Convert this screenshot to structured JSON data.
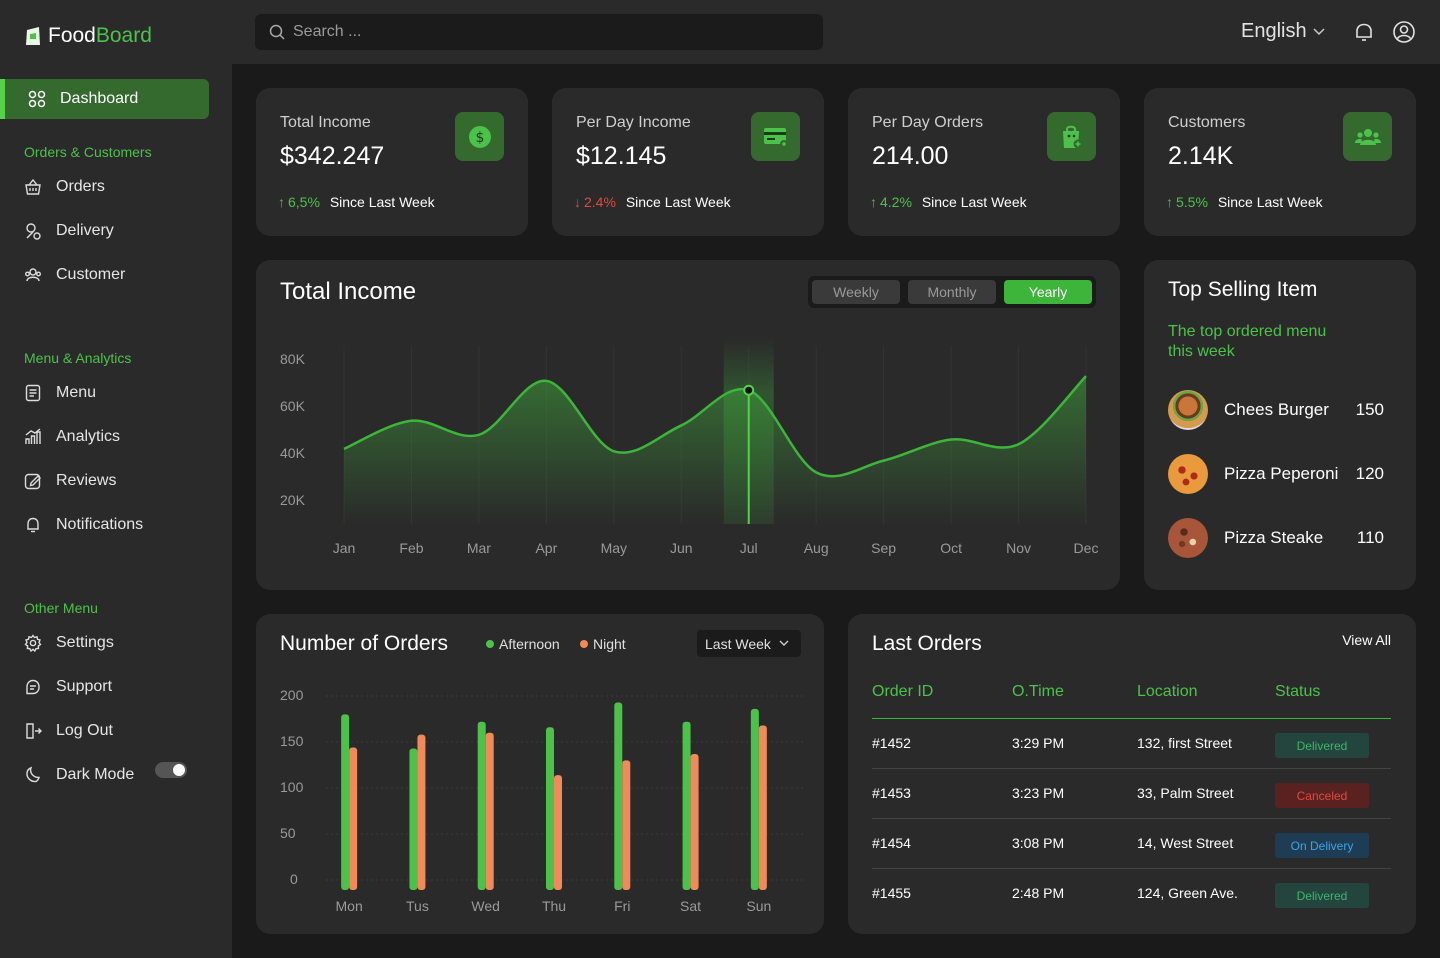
{
  "app": {
    "name_part1": "Food",
    "name_part2": "Board"
  },
  "search": {
    "placeholder": "Search ..."
  },
  "header": {
    "language": "English"
  },
  "sidebar": {
    "dashboard": "Dashboard",
    "section1": "Orders & Customers",
    "orders": "Orders",
    "delivery": "Delivery",
    "customer": "Customer",
    "section2": "Menu & Analytics",
    "menu": "Menu",
    "analytics": "Analytics",
    "reviews": "Reviews",
    "notifications": "Notifications",
    "section3": "Other Menu",
    "settings": "Settings",
    "support": "Support",
    "logout": "Log Out",
    "darkmode": "Dark Mode"
  },
  "stats": [
    {
      "label": "Total Income",
      "value": "$342.247",
      "change": "6,5%",
      "direction": "up",
      "suffix": "Since Last Week"
    },
    {
      "label": "Per Day Income",
      "value": "$12.145",
      "change": "2.4%",
      "direction": "down",
      "suffix": "Since Last Week"
    },
    {
      "label": "Per Day Orders",
      "value": "214.00",
      "change": "4.2%",
      "direction": "up",
      "suffix": "Since Last Week"
    },
    {
      "label": "Customers",
      "value": "2.14K",
      "change": "5.5%",
      "direction": "up",
      "suffix": "Since Last Week"
    }
  ],
  "income_chart": {
    "title": "Total Income",
    "tabs": [
      "Weekly",
      "Monthly",
      "Yearly"
    ],
    "active_tab": "Yearly",
    "y_ticks": [
      "80K",
      "60K",
      "40K",
      "20K"
    ],
    "months": [
      "Jan",
      "Feb",
      "Mar",
      "Apr",
      "May",
      "Jun",
      "Jul",
      "Aug",
      "Sep",
      "Oct",
      "Nov",
      "Dec"
    ],
    "highlight": "Jul"
  },
  "top_selling": {
    "title": "Top Selling Item",
    "subtitle": "The top ordered menu this week",
    "items": [
      {
        "name": "Chees Burger",
        "count": "150"
      },
      {
        "name": "Pizza Peperoni",
        "count": "120"
      },
      {
        "name": "Pizza Steake",
        "count": "110"
      }
    ]
  },
  "orders_chart": {
    "title": "Number of Orders",
    "legend_afternoon": "Afternoon",
    "legend_night": "Night",
    "period": "Last Week",
    "y_ticks": [
      "200",
      "150",
      "100",
      "50",
      "0"
    ]
  },
  "last_orders": {
    "title": "Last Orders",
    "view_all": "View All",
    "columns": [
      "Order ID",
      "O.Time",
      "Location",
      "Status"
    ],
    "rows": [
      {
        "id": "#1452",
        "time": "3:29 PM",
        "location": "132, first Street",
        "status": "Delivered",
        "kind": "delivered"
      },
      {
        "id": "#1453",
        "time": "3:23 PM",
        "location": "33, Palm Street",
        "status": "Canceled",
        "kind": "canceled"
      },
      {
        "id": "#1454",
        "time": "3:08 PM",
        "location": "14, West Street",
        "status": "On Delivery",
        "kind": "ondelivery"
      },
      {
        "id": "#1455",
        "time": "2:48 PM",
        "location": "124, Green Ave.",
        "status": "Delivered",
        "kind": "delivered"
      }
    ]
  },
  "colors": {
    "accent": "#4cc24a",
    "night": "#f08a5a",
    "card": "#2a2a2a",
    "bg": "#1a1a1a"
  },
  "chart_data": [
    {
      "type": "area",
      "title": "Total Income",
      "x": [
        "Jan",
        "Feb",
        "Mar",
        "Apr",
        "May",
        "Jun",
        "Jul",
        "Aug",
        "Sep",
        "Oct",
        "Nov",
        "Dec"
      ],
      "series": [
        {
          "values": [
            42000,
            54000,
            48000,
            71000,
            41000,
            52000,
            67000,
            32000,
            37000,
            46000,
            44000,
            73000
          ]
        }
      ],
      "ylim": [
        10000,
        85000
      ],
      "grid": true
    },
    {
      "type": "bar",
      "title": "Number of Orders",
      "categories": [
        "Mon",
        "Tus",
        "Wed",
        "Thu",
        "Fri",
        "Sat",
        "Sun"
      ],
      "series": [
        {
          "name": "Afternoon",
          "values": [
            180,
            143,
            172,
            166,
            193,
            172,
            186
          ]
        },
        {
          "name": "Night",
          "values": [
            144,
            158,
            160,
            114,
            130,
            137,
            168
          ]
        }
      ],
      "ylim": [
        0,
        200
      ],
      "legend": "top"
    }
  ]
}
